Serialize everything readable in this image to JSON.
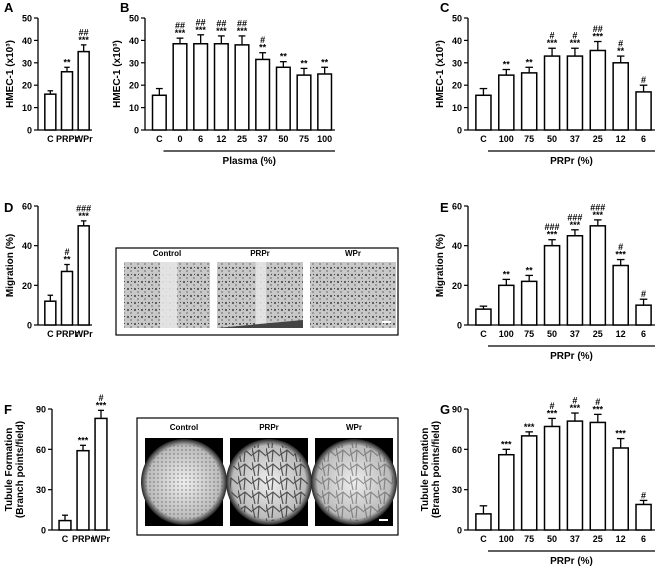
{
  "chart_data": [
    {
      "type": "bar",
      "panel": "A",
      "ylabel": "HMEC-1 (x10³)",
      "categories": [
        "C",
        "PRPr",
        "WPr"
      ],
      "values": [
        16,
        26,
        35
      ],
      "errors": [
        1.5,
        2,
        3
      ],
      "annotations": [
        null,
        [
          "**"
        ],
        [
          "##",
          "***"
        ]
      ],
      "ylim": [
        0,
        50
      ],
      "yticks": [
        0,
        10,
        20,
        30,
        40,
        50
      ]
    },
    {
      "type": "bar",
      "panel": "B",
      "ylabel": "HMEC-1 (x10³)",
      "xlabel": "Plasma (%)",
      "categories": [
        "C",
        "0",
        "6",
        "12",
        "25",
        "37",
        "50",
        "75",
        "100"
      ],
      "values": [
        15.5,
        38.5,
        38.5,
        38.5,
        38,
        31.5,
        28,
        24.5,
        25
      ],
      "errors": [
        3,
        2.5,
        4,
        3.5,
        4,
        3,
        2.5,
        3,
        3
      ],
      "annotations": [
        null,
        [
          "##",
          "***"
        ],
        [
          "##",
          "***"
        ],
        [
          "##",
          "***"
        ],
        [
          "##",
          "***"
        ],
        [
          "#",
          "**"
        ],
        [
          "**"
        ],
        [
          "**"
        ],
        [
          "**"
        ]
      ],
      "ylim": [
        0,
        50
      ],
      "yticks": [
        0,
        10,
        20,
        30,
        40,
        50
      ]
    },
    {
      "type": "bar",
      "panel": "C",
      "ylabel": "HMEC-1 (x10³)",
      "xlabel": "PRPr (%)",
      "categories": [
        "C",
        "100",
        "75",
        "50",
        "37",
        "25",
        "12",
        "6"
      ],
      "values": [
        15.5,
        24.5,
        25.5,
        33,
        33,
        35.5,
        30,
        17
      ],
      "errors": [
        3,
        2.5,
        2.5,
        3.5,
        3.5,
        4,
        3,
        3
      ],
      "annotations": [
        null,
        [
          "**"
        ],
        [
          "**"
        ],
        [
          "#",
          "***"
        ],
        [
          "#",
          "***"
        ],
        [
          "##",
          "***"
        ],
        [
          "#",
          "**"
        ],
        [
          "#"
        ]
      ],
      "ylim": [
        0,
        50
      ],
      "yticks": [
        0,
        10,
        20,
        30,
        40,
        50
      ]
    },
    {
      "type": "bar",
      "panel": "D",
      "ylabel": "Migration (%)",
      "categories": [
        "C",
        "PRPr",
        "WPr"
      ],
      "values": [
        12,
        27,
        50
      ],
      "errors": [
        3,
        3.5,
        2.5
      ],
      "annotations": [
        null,
        [
          "#",
          "**"
        ],
        [
          "###",
          "***"
        ]
      ],
      "ylim": [
        0,
        60
      ],
      "yticks": [
        0,
        20,
        40,
        60
      ]
    },
    {
      "type": "bar",
      "panel": "E",
      "ylabel": "Migration (%)",
      "xlabel": "PRPr (%)",
      "categories": [
        "C",
        "100",
        "75",
        "50",
        "37",
        "25",
        "12",
        "6"
      ],
      "values": [
        8,
        20,
        22,
        40,
        45,
        50,
        30,
        10
      ],
      "errors": [
        1.5,
        3,
        3,
        3,
        3,
        3,
        3,
        3
      ],
      "annotations": [
        null,
        [
          "**"
        ],
        [
          "**"
        ],
        [
          "###",
          "***"
        ],
        [
          "###",
          "***"
        ],
        [
          "###",
          "***"
        ],
        [
          "#",
          "***"
        ],
        [
          "#"
        ]
      ],
      "ylim": [
        0,
        60
      ],
      "yticks": [
        0,
        20,
        40,
        60
      ]
    },
    {
      "type": "bar",
      "panel": "F",
      "ylabel": [
        "Tubule Formation",
        "(Branch points/field)"
      ],
      "categories": [
        "C",
        "PRPr",
        "WPr"
      ],
      "values": [
        7,
        59,
        83
      ],
      "errors": [
        4,
        4,
        6
      ],
      "annotations": [
        null,
        [
          "***"
        ],
        [
          "#",
          "***"
        ]
      ],
      "ylim": [
        0,
        90
      ],
      "yticks": [
        0,
        30,
        60,
        90
      ]
    },
    {
      "type": "bar",
      "panel": "G",
      "ylabel": [
        "Tubule Formation",
        "(Branch points/field)"
      ],
      "xlabel": "PRPr (%)",
      "categories": [
        "C",
        "100",
        "75",
        "50",
        "37",
        "25",
        "12",
        "6"
      ],
      "values": [
        12,
        56,
        70,
        77,
        81,
        80,
        61,
        19
      ],
      "errors": [
        6,
        4,
        3,
        6,
        6,
        6,
        7,
        3
      ],
      "annotations": [
        null,
        [
          "***"
        ],
        [
          "***"
        ],
        [
          "#",
          "***"
        ],
        [
          "#",
          "***"
        ],
        [
          "#",
          "***"
        ],
        [
          "***"
        ],
        [
          "#"
        ]
      ],
      "ylim": [
        0,
        90
      ],
      "yticks": [
        0,
        30,
        60,
        90
      ]
    }
  ],
  "micrographs": [
    {
      "labels": [
        "Control",
        "PRPr",
        "WPr"
      ]
    },
    {
      "labels": [
        "Control",
        "PRPr",
        "WPr"
      ]
    }
  ]
}
